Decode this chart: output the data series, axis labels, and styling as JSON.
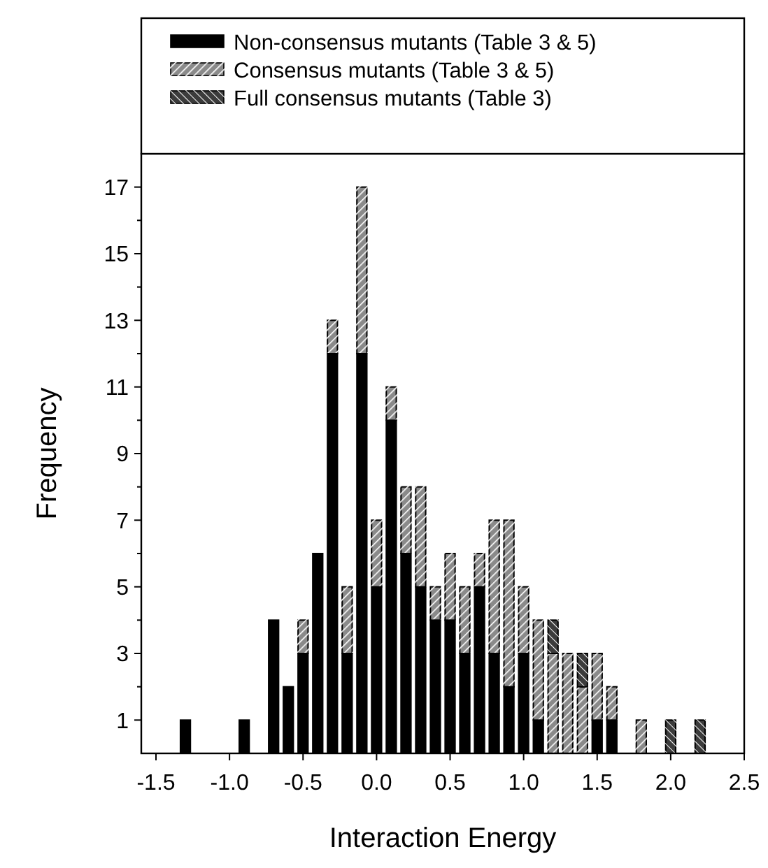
{
  "chart_data": {
    "type": "bar",
    "stacked": true,
    "xlabel": "Interaction Energy",
    "ylabel": "Frequency",
    "x": [
      -1.3,
      -0.9,
      -0.7,
      -0.6,
      -0.5,
      -0.4,
      -0.3,
      -0.2,
      -0.1,
      0.0,
      0.1,
      0.2,
      0.3,
      0.4,
      0.5,
      0.6,
      0.7,
      0.8,
      0.9,
      1.0,
      1.1,
      1.2,
      1.3,
      1.4,
      1.5,
      1.6,
      1.8,
      2.0,
      2.2
    ],
    "series": [
      {
        "name": "Non-consensus mutants (Table 3 & 5)",
        "color": "#000000",
        "values": [
          1,
          1,
          4,
          2,
          3,
          6,
          12,
          3,
          12,
          5,
          10,
          6,
          5,
          4,
          4,
          3,
          5,
          3,
          2,
          3,
          1,
          0,
          0,
          0,
          1,
          1,
          0,
          0,
          0
        ]
      },
      {
        "name": "Consensus mutants (Table 3 & 5)",
        "color": "#8a8a8a",
        "values": [
          0,
          0,
          0,
          0,
          1,
          0,
          1,
          2,
          5,
          2,
          1,
          2,
          3,
          1,
          2,
          2,
          1,
          4,
          5,
          2,
          3,
          3,
          3,
          2,
          2,
          1,
          1,
          0,
          0
        ]
      },
      {
        "name": "Full consensus mutants (Table 3)",
        "color": "#3c3c3c",
        "values": [
          0,
          0,
          0,
          0,
          0,
          0,
          0,
          0,
          0,
          0,
          0,
          0,
          0,
          0,
          0,
          0,
          0,
          0,
          0,
          0,
          0,
          1,
          0,
          1,
          0,
          0,
          0,
          1,
          1
        ]
      }
    ],
    "xlim": [
      -1.6,
      2.5
    ],
    "xticks": [
      {
        "value": -1.5,
        "label": "-1.5"
      },
      {
        "value": -1,
        "label": "-1.0"
      },
      {
        "value": -0.5,
        "label": "-0.5"
      },
      {
        "value": 0,
        "label": "0.0"
      },
      {
        "value": 0.5,
        "label": "0.5"
      },
      {
        "value": 1,
        "label": "1.0"
      },
      {
        "value": 1.5,
        "label": "1.5"
      },
      {
        "value": 2,
        "label": "2.0"
      },
      {
        "value": 2.5,
        "label": "2.5"
      }
    ],
    "ylim": [
      0,
      18
    ],
    "yticks": [
      1,
      {
        "value": 2,
        "label": null
      },
      3,
      {
        "value": 4,
        "label": null
      },
      5,
      {
        "value": 6,
        "label": null
      },
      7,
      {
        "value": 8,
        "label": null
      },
      9,
      {
        "value": 10,
        "label": null
      },
      11,
      {
        "value": 12,
        "label": null
      },
      13,
      {
        "value": 14,
        "label": null
      },
      15,
      {
        "value": 16,
        "label": null
      },
      17
    ],
    "grid": false,
    "legend": "top"
  }
}
